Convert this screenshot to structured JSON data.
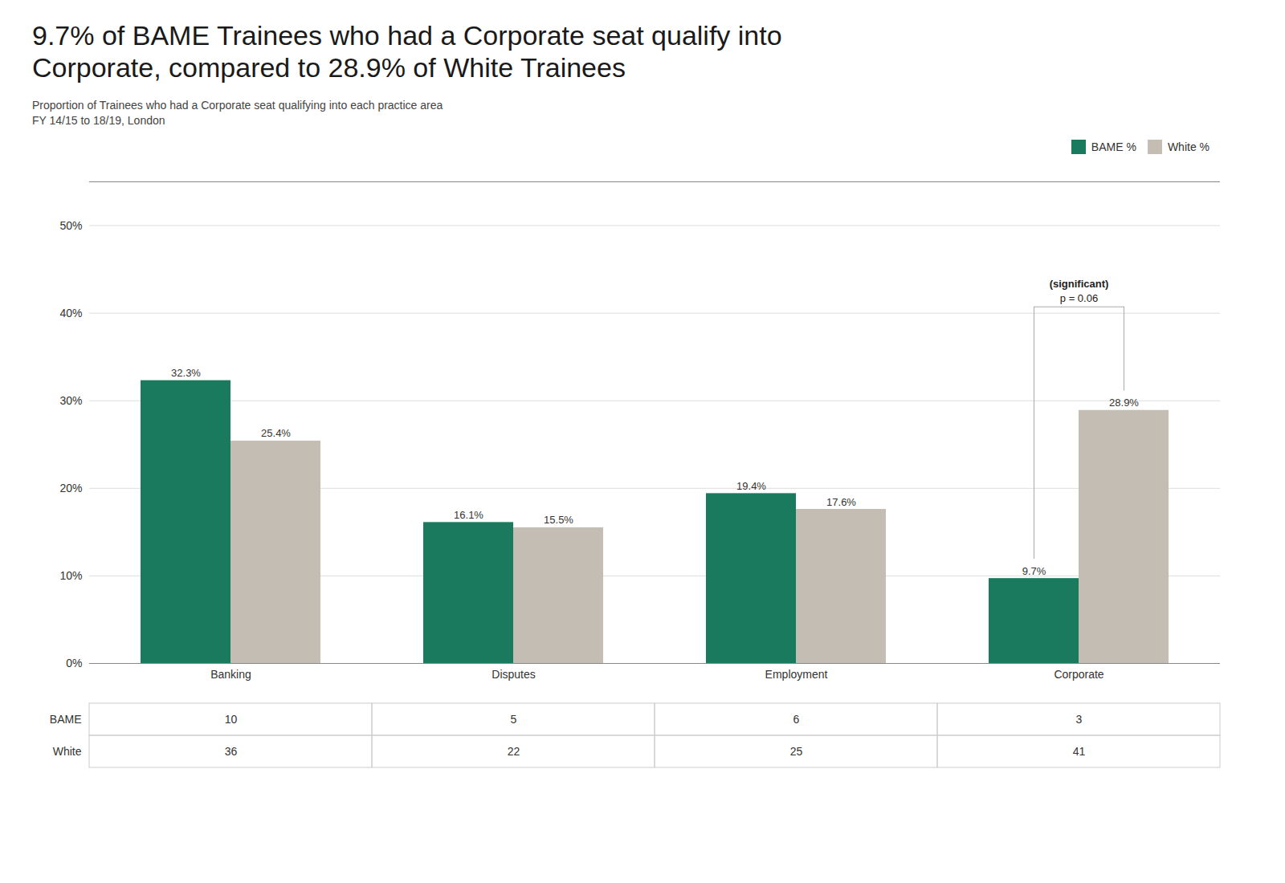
{
  "chart_data": {
    "type": "bar",
    "title": [
      "9.7% of BAME Trainees who had a Corporate seat qualify into",
      "Corporate, compared to 28.9% of White Trainees"
    ],
    "subtitle": [
      "Proportion of Trainees who had a Corporate seat qualifying into each practice area",
      "FY 14/15 to 18/19, London"
    ],
    "categories": [
      "Banking",
      "Disputes",
      "Employment",
      "Corporate"
    ],
    "series": [
      {
        "name": "BAME %",
        "color": "#1a7a5e",
        "values": [
          0.323,
          0.161,
          0.194,
          0.097
        ],
        "value_labels": [
          "32.3%",
          "16.1%",
          "19.4%",
          "9.7%"
        ]
      },
      {
        "name": "White %",
        "color": "#c4bdb4",
        "values": [
          0.254,
          0.155,
          0.176,
          0.289
        ],
        "value_labels": [
          "25.4%",
          "15.5%",
          "17.6%",
          "28.9%"
        ]
      }
    ],
    "data_labels": true,
    "ylim": [
      0,
      0.55
    ],
    "yticks": [
      {
        "value": 0.0,
        "label": "0%"
      },
      {
        "value": 0.1,
        "label": "10%"
      },
      {
        "value": 0.2,
        "label": "20%"
      },
      {
        "value": 0.3,
        "label": "30%"
      },
      {
        "value": 0.4,
        "label": "40%"
      },
      {
        "value": 0.5,
        "label": "50%"
      }
    ],
    "grid": true,
    "legend": "upper right",
    "annotations": [
      {
        "category": "Corporate",
        "text": "p = 0.06"
      },
      {
        "category": "Corporate",
        "text": "(significant)"
      }
    ],
    "table": {
      "rows": [
        {
          "name": "BAME",
          "values": [
            10,
            5,
            6,
            3
          ]
        },
        {
          "name": "White",
          "values": [
            36,
            22,
            25,
            41
          ]
        }
      ]
    }
  }
}
